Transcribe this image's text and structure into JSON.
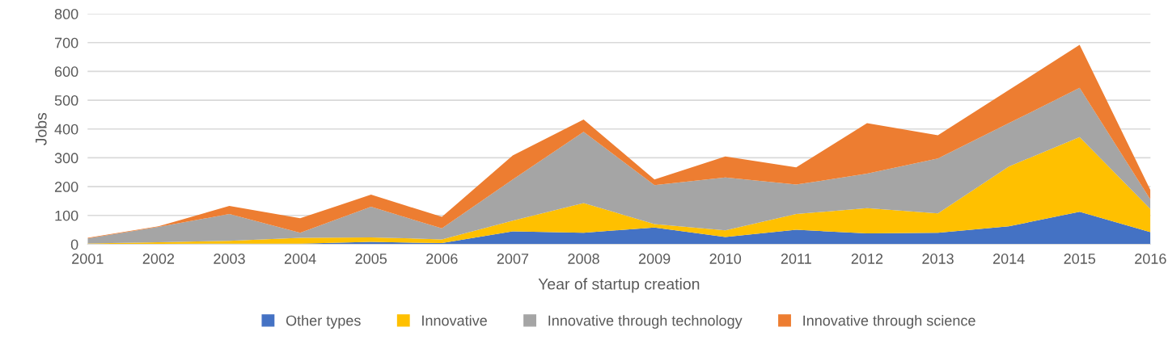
{
  "chart_data": {
    "type": "area",
    "stacked": true,
    "xlabel": "Year of startup creation",
    "ylabel": "Jobs",
    "categories": [
      "2001",
      "2002",
      "2003",
      "2004",
      "2005",
      "2006",
      "2007",
      "2008",
      "2009",
      "2010",
      "2011",
      "2012",
      "2013",
      "2014",
      "2015",
      "2016"
    ],
    "series": [
      {
        "name": "Other types",
        "color": "#4472c4",
        "values": [
          0,
          1,
          2,
          2,
          8,
          4,
          45,
          40,
          58,
          25,
          50,
          38,
          40,
          62,
          113,
          42
        ]
      },
      {
        "name": "Innovative",
        "color": "#ffc000",
        "values": [
          3,
          6,
          10,
          20,
          16,
          13,
          37,
          103,
          12,
          23,
          55,
          87,
          67,
          208,
          259,
          80
        ]
      },
      {
        "name": "Innovative through technology",
        "color": "#a5a5a5",
        "values": [
          17,
          53,
          93,
          18,
          106,
          38,
          143,
          247,
          135,
          184,
          102,
          120,
          191,
          150,
          171,
          33
        ]
      },
      {
        "name": "Innovative through science",
        "color": "#ed7d31",
        "values": [
          2,
          2,
          28,
          50,
          42,
          40,
          83,
          43,
          20,
          73,
          60,
          175,
          80,
          115,
          149,
          33
        ]
      }
    ],
    "ylim": [
      0,
      800
    ],
    "yticks": [
      0,
      100,
      200,
      300,
      400,
      500,
      600,
      700,
      800
    ],
    "grid": "y",
    "legend": "bottom"
  }
}
